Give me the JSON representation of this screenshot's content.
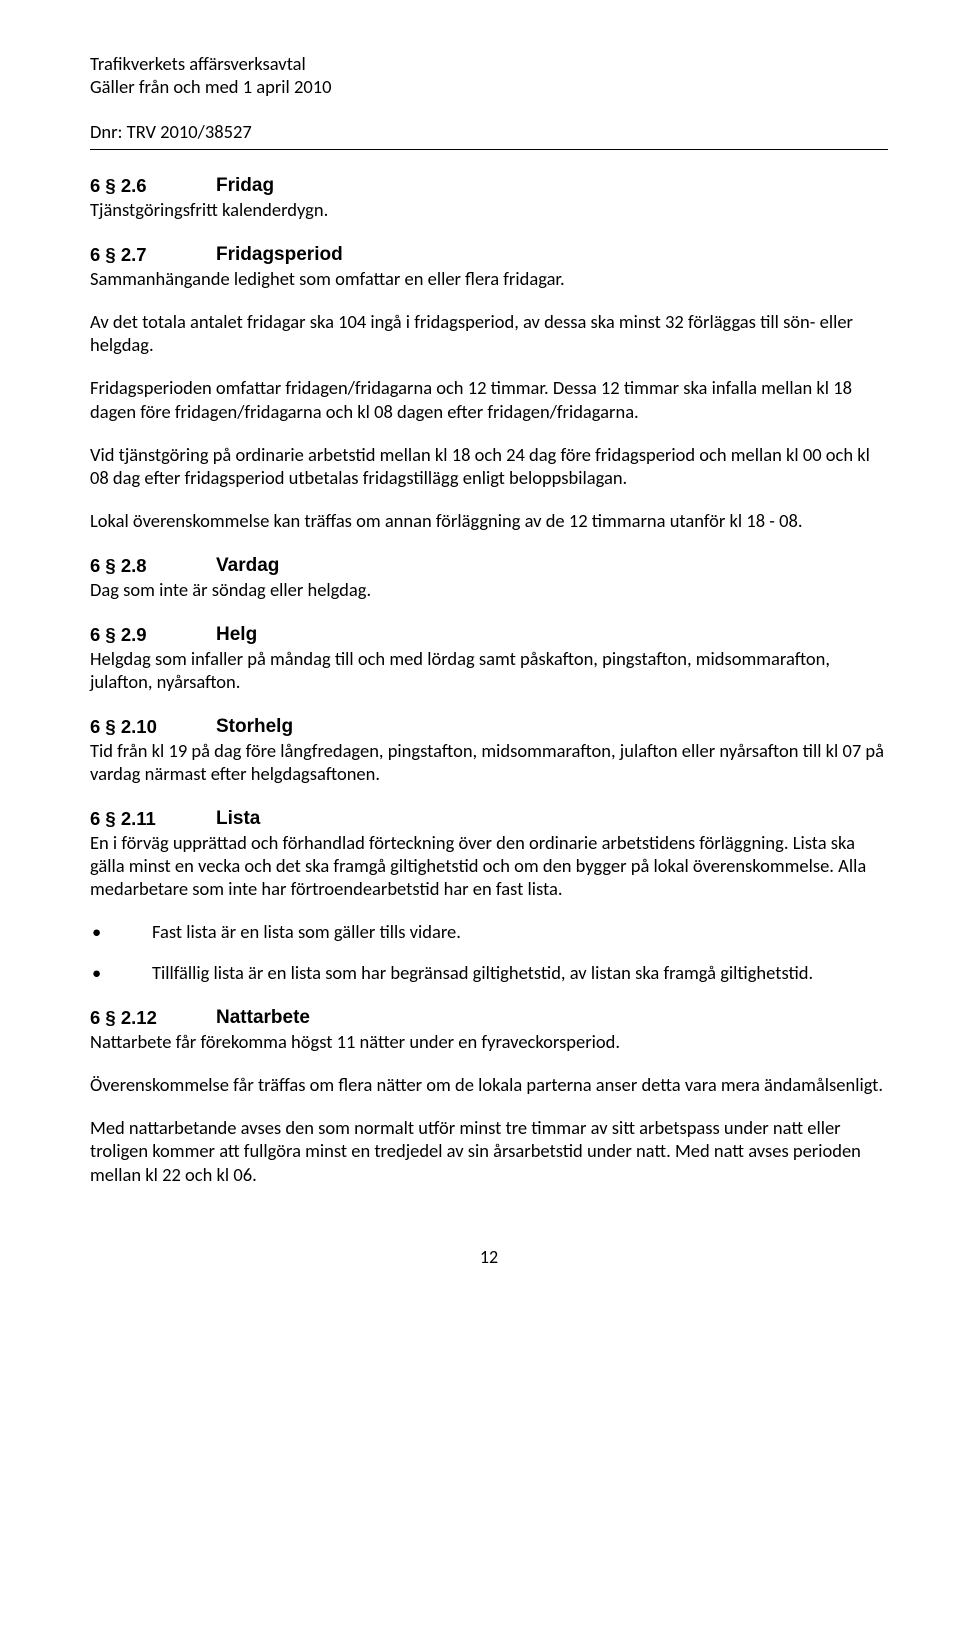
{
  "header": {
    "line1": "Trafikverkets affärsverksavtal",
    "line2": "Gäller från och med 1 april 2010",
    "dnr": "Dnr: TRV 2010/38527"
  },
  "sections": [
    {
      "num": "6 § 2.6",
      "title": "Fridag",
      "paras": [
        "Tjänstgöringsfritt kalenderdygn."
      ]
    },
    {
      "num": "6 § 2.7",
      "title": "Fridagsperiod",
      "paras": [
        "Sammanhängande ledighet som omfattar en eller flera fridagar.",
        "Av det totala antalet fridagar ska 104 ingå i fridagsperiod, av dessa ska minst 32 förläggas till sön- eller helgdag.",
        "Fridagsperioden omfattar fridagen/fridagarna och 12 timmar. Dessa 12 timmar ska infalla mellan kl 18 dagen före fridagen/fridagarna och kl 08 dagen efter fridagen/fridagarna.",
        "Vid tjänstgöring på ordinarie arbetstid mellan kl 18 och 24 dag före fridagsperiod och mellan kl 00 och kl 08 dag efter fridagsperiod utbetalas fridagstillägg enligt beloppsbilagan.",
        "Lokal överenskommelse kan träffas om annan förläggning av de 12 timmarna utanför kl 18 - 08."
      ]
    },
    {
      "num": "6 § 2.8",
      "title": "Vardag",
      "paras": [
        "Dag som inte är söndag eller helgdag."
      ]
    },
    {
      "num": "6 § 2.9",
      "title": "Helg",
      "paras": [
        "Helgdag som infaller på måndag till och med lördag samt påskafton, pingstafton, midsommarafton, julafton, nyårsafton."
      ]
    },
    {
      "num": "6 § 2.10",
      "title": "Storhelg",
      "paras": [
        "Tid från kl 19 på dag före långfredagen, pingstafton, midsommarafton, julafton eller nyårsafton till kl 07 på vardag närmast efter helgdagsaftonen."
      ]
    },
    {
      "num": "6 § 2.11",
      "title": "Lista",
      "paras": [
        "En i förväg upprättad och förhandlad förteckning över den ordinarie arbetstidens förläggning. Lista ska gälla minst en vecka och det ska framgå giltighetstid och om den bygger på lokal överenskommelse. Alla medarbetare som inte har förtroendearbetstid har en fast lista."
      ],
      "bullets": [
        "Fast lista är en lista som gäller tills vidare.",
        "Tillfällig lista är en lista som har begränsad giltighetstid, av listan ska framgå giltighetstid."
      ]
    },
    {
      "num": "6 § 2.12",
      "title": "Nattarbete",
      "paras": [
        "Nattarbete får förekomma högst 11 nätter under en fyraveckorsperiod.",
        "Överenskommelse får träffas om flera nätter om de lokala parterna anser detta vara mera ändamålsenligt.",
        "Med nattarbetande avses den som normalt utför minst tre timmar av sitt arbetspass under natt eller troligen kommer att fullgöra minst en tredjedel av sin årsarbetstid under natt. Med natt avses perioden mellan kl 22 och kl 06."
      ]
    }
  ],
  "bullet_char": "•",
  "page_number": "12"
}
